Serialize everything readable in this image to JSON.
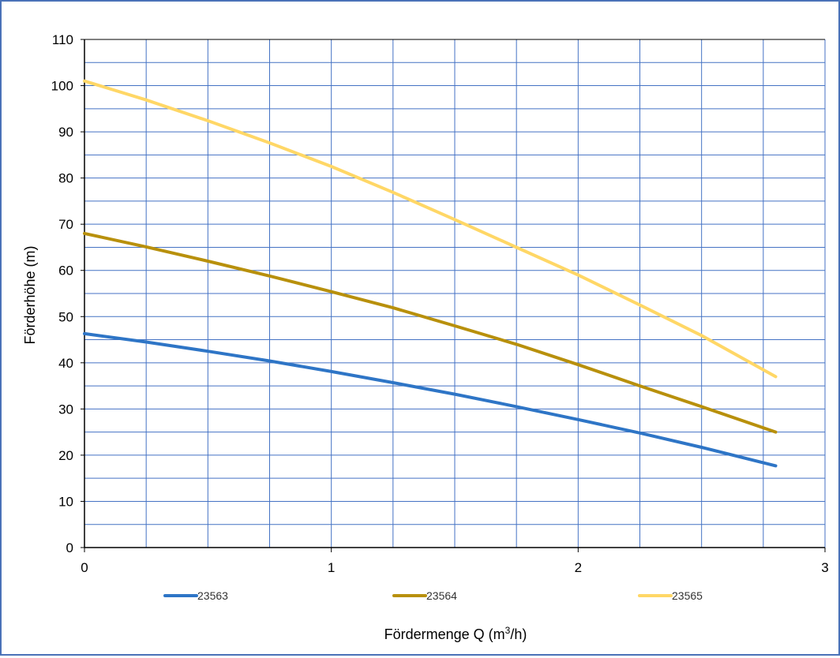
{
  "chart_data": {
    "type": "line",
    "xlabel": "Fördermenge Q (m³/h)",
    "ylabel": "Förderhöhe (m)",
    "xlim": [
      0,
      3
    ],
    "ylim": [
      0,
      110
    ],
    "x_major_ticks": [
      "0",
      "1",
      "2",
      "3"
    ],
    "y_major_ticks": [
      "0",
      "10",
      "20",
      "30",
      "40",
      "50",
      "60",
      "70",
      "80",
      "90",
      "100",
      "110"
    ],
    "x_minor_step": 0.25,
    "y_minor_step": 5,
    "grid": true,
    "legend_position": "bottom",
    "series": [
      {
        "name": "23563",
        "color": "#2e75c6",
        "x": [
          0,
          0.25,
          0.5,
          0.75,
          1.0,
          1.25,
          1.5,
          1.75,
          2.0,
          2.25,
          2.5,
          2.8
        ],
        "y": [
          46.3,
          44.5,
          42.5,
          40.4,
          38.1,
          35.7,
          33.2,
          30.5,
          27.7,
          24.8,
          21.7,
          17.7
        ]
      },
      {
        "name": "23564",
        "color": "#b8900c",
        "x": [
          0,
          0.25,
          0.5,
          0.75,
          1.0,
          1.25,
          1.5,
          1.75,
          2.0,
          2.25,
          2.5,
          2.8
        ],
        "y": [
          68.0,
          65.1,
          62.0,
          58.8,
          55.4,
          51.9,
          48.0,
          44.0,
          39.6,
          35.0,
          30.5,
          25.0
        ]
      },
      {
        "name": "23565",
        "color": "#ffd766",
        "x": [
          0,
          0.25,
          0.5,
          0.75,
          1.0,
          1.25,
          1.5,
          1.75,
          2.0,
          2.25,
          2.5,
          2.8
        ],
        "y": [
          101.0,
          96.9,
          92.4,
          87.6,
          82.5,
          76.9,
          71.0,
          65.0,
          59.0,
          52.5,
          45.9,
          37.0
        ]
      }
    ]
  }
}
